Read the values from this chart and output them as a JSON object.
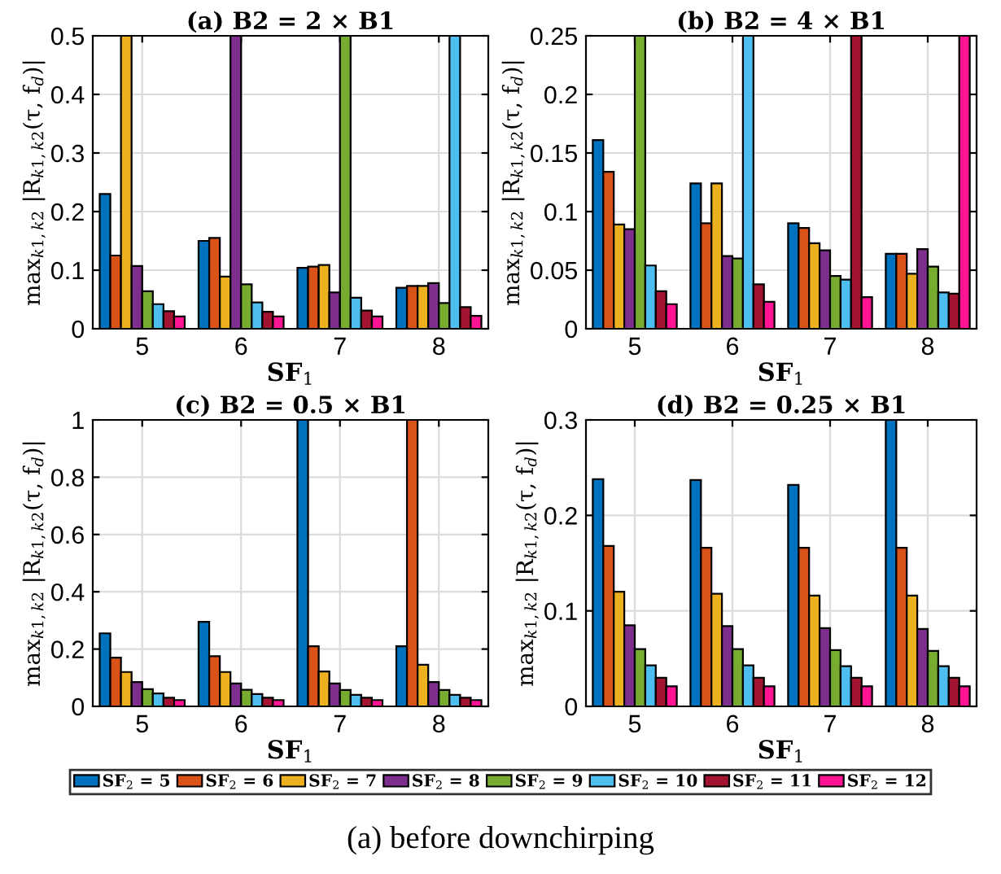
{
  "chart_data": [
    {
      "type": "bar",
      "title": "(a) B2 = 2 × B1",
      "xlabel": "SF$_{1}$",
      "ylabel": "max$_{k1,k2}$ |R$_{k1,k2}$(τ, f$_{d}$)|",
      "categories": [
        "5",
        "6",
        "7",
        "8"
      ],
      "ylim": [
        0,
        0.5
      ],
      "yticks": [
        0,
        0.1,
        0.2,
        0.3,
        0.4,
        0.5
      ],
      "grid": true,
      "legend": "bottom",
      "series": [
        {
          "name": "SF$_{2}$ = 5",
          "color": "#0072bd",
          "values": [
            0.23,
            0.15,
            0.104,
            0.07
          ]
        },
        {
          "name": "SF$_{2}$ = 6",
          "color": "#d95319",
          "values": [
            0.125,
            0.155,
            0.106,
            0.073
          ]
        },
        {
          "name": "SF$_{2}$ = 7",
          "color": "#edb120",
          "values": [
            0.5,
            0.089,
            0.109,
            0.073
          ]
        },
        {
          "name": "SF$_{2}$ = 8",
          "color": "#7e2f8e",
          "values": [
            0.107,
            0.5,
            0.062,
            0.078
          ]
        },
        {
          "name": "SF$_{2}$ = 9",
          "color": "#77ac30",
          "values": [
            0.064,
            0.076,
            0.5,
            0.044
          ]
        },
        {
          "name": "SF$_{2}$ = 10",
          "color": "#4dbeee",
          "values": [
            0.042,
            0.045,
            0.053,
            0.5
          ]
        },
        {
          "name": "SF$_{2}$ = 11",
          "color": "#a2142f",
          "values": [
            0.03,
            0.029,
            0.031,
            0.037
          ]
        },
        {
          "name": "SF$_{2}$ = 12",
          "color": "#ff1493",
          "values": [
            0.021,
            0.021,
            0.021,
            0.022
          ]
        }
      ]
    },
    {
      "type": "bar",
      "title": "(b) B2 = 4 × B1",
      "xlabel": "SF$_{1}$",
      "ylabel": "max$_{k1,k2}$ |R$_{k1,k2}$(τ, f$_{d}$)|",
      "categories": [
        "5",
        "6",
        "7",
        "8"
      ],
      "ylim": [
        0,
        0.25
      ],
      "yticks": [
        0,
        0.05,
        0.1,
        0.15,
        0.2,
        0.25
      ],
      "grid": true,
      "series": [
        {
          "color": "#0072bd",
          "values": [
            0.161,
            0.124,
            0.09,
            0.064
          ]
        },
        {
          "color": "#d95319",
          "values": [
            0.134,
            0.09,
            0.086,
            0.064
          ]
        },
        {
          "color": "#edb120",
          "values": [
            0.089,
            0.124,
            0.073,
            0.047
          ]
        },
        {
          "color": "#7e2f8e",
          "values": [
            0.085,
            0.062,
            0.067,
            0.068
          ]
        },
        {
          "color": "#77ac30",
          "values": [
            0.25,
            0.06,
            0.045,
            0.053
          ]
        },
        {
          "color": "#4dbeee",
          "values": [
            0.054,
            0.25,
            0.042,
            0.031
          ]
        },
        {
          "color": "#a2142f",
          "values": [
            0.032,
            0.038,
            0.25,
            0.03
          ]
        },
        {
          "color": "#ff1493",
          "values": [
            0.021,
            0.023,
            0.027,
            0.25
          ]
        }
      ]
    },
    {
      "type": "bar",
      "title": "(c) B2 = 0.5 × B1",
      "xlabel": "SF$_{1}$",
      "ylabel": "max$_{k1,k2}$ |R$_{k1,k2}$(τ, f$_{d}$)|",
      "categories": [
        "5",
        "6",
        "7",
        "8"
      ],
      "ylim": [
        0,
        1
      ],
      "yticks": [
        0,
        0.2,
        0.4,
        0.6,
        0.8,
        1
      ],
      "grid": true,
      "series": [
        {
          "color": "#0072bd",
          "values": [
            0.255,
            0.295,
            1,
            0.21
          ]
        },
        {
          "color": "#d95319",
          "values": [
            0.17,
            0.175,
            0.21,
            1
          ]
        },
        {
          "color": "#edb120",
          "values": [
            0.12,
            0.12,
            0.122,
            0.145
          ]
        },
        {
          "color": "#7e2f8e",
          "values": [
            0.085,
            0.08,
            0.08,
            0.085
          ]
        },
        {
          "color": "#77ac30",
          "values": [
            0.06,
            0.058,
            0.057,
            0.057
          ]
        },
        {
          "color": "#4dbeee",
          "values": [
            0.045,
            0.043,
            0.04,
            0.04
          ]
        },
        {
          "color": "#a2142f",
          "values": [
            0.03,
            0.03,
            0.03,
            0.03
          ]
        },
        {
          "color": "#ff1493",
          "values": [
            0.022,
            0.022,
            0.022,
            0.022
          ]
        }
      ]
    },
    {
      "type": "bar",
      "title": "(d) B2 = 0.25 × B1",
      "xlabel": "SF$_{1}$",
      "ylabel": "max$_{k1,k2}$ |R$_{k1,k2}$(τ, f$_{d}$)|",
      "categories": [
        "5",
        "6",
        "7",
        "8"
      ],
      "ylim": [
        0,
        0.3
      ],
      "yticks": [
        0,
        0.1,
        0.2,
        0.3
      ],
      "grid": true,
      "annotations": [
        "(a) before downchirping"
      ],
      "series": [
        {
          "color": "#0072bd",
          "values": [
            0.238,
            0.237,
            0.232,
            0.3
          ]
        },
        {
          "color": "#d95319",
          "values": [
            0.168,
            0.166,
            0.166,
            0.166
          ]
        },
        {
          "color": "#edb120",
          "values": [
            0.12,
            0.118,
            0.116,
            0.116
          ]
        },
        {
          "color": "#7e2f8e",
          "values": [
            0.085,
            0.084,
            0.082,
            0.081
          ]
        },
        {
          "color": "#77ac30",
          "values": [
            0.06,
            0.06,
            0.059,
            0.058
          ]
        },
        {
          "color": "#4dbeee",
          "values": [
            0.043,
            0.043,
            0.042,
            0.042
          ]
        },
        {
          "color": "#a2142f",
          "values": [
            0.03,
            0.03,
            0.03,
            0.03
          ]
        },
        {
          "color": "#ff1493",
          "values": [
            0.021,
            0.021,
            0.021,
            0.021
          ]
        }
      ]
    }
  ]
}
